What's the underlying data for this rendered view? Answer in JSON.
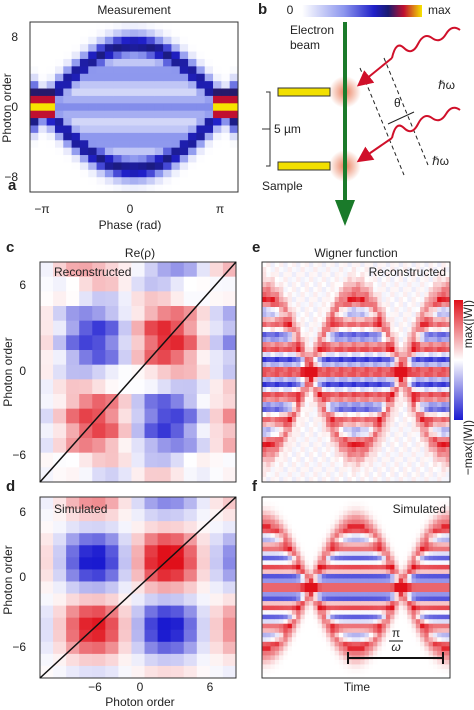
{
  "panels": {
    "a": {
      "letter": "a",
      "title": "Measurement",
      "y_label": "Photon order",
      "y_ticks": [
        "8",
        "0",
        "−8"
      ],
      "x_ticks": [
        "−π",
        "0",
        "π"
      ],
      "x_label": "Phase (rad)"
    },
    "b": {
      "letter": "b",
      "colorbar": [
        "0",
        "max"
      ],
      "beam_label": [
        "Electron",
        "beam"
      ],
      "scale": "5 µm",
      "sample": "Sample",
      "angle": "θ",
      "photon": "ℏω"
    },
    "c": {
      "letter": "c",
      "title": "Re(ρ)",
      "inset": "Reconstructed",
      "y_label": "Photon order",
      "y_ticks": [
        "6",
        "0",
        "−6"
      ]
    },
    "d": {
      "letter": "d",
      "inset": "Simulated",
      "y_label": "Photon order",
      "y_ticks": [
        "6",
        "0",
        "−6"
      ],
      "x_ticks": [
        "−6",
        "0",
        "6"
      ],
      "x_label": "Photon order"
    },
    "e": {
      "letter": "e",
      "title": "Wigner function",
      "inset": "Reconstructed",
      "colorbar": [
        "max(|W|)",
        "−max(|W|)"
      ]
    },
    "f": {
      "letter": "f",
      "inset": "Simulated",
      "x_label": "Time",
      "scale_num": "π",
      "scale_den": "ω"
    }
  }
}
